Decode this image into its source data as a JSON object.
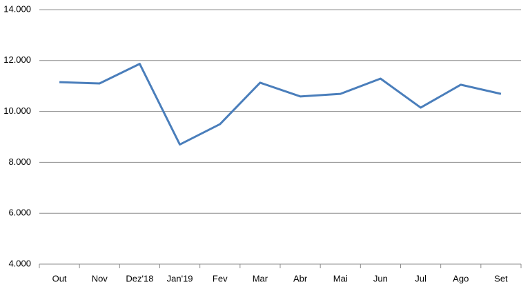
{
  "chart_data": {
    "type": "line",
    "categories": [
      "Out",
      "Nov",
      "Dez'18",
      "Jan'19",
      "Fev",
      "Mar",
      "Abr",
      "Mai",
      "Jun",
      "Jul",
      "Ago",
      "Set"
    ],
    "series": [
      {
        "color": "#4a7ebb",
        "values": [
          11150,
          11100,
          11870,
          8700,
          9500,
          11130,
          10590,
          10690,
          11290,
          10150,
          11050,
          10690
        ]
      }
    ],
    "ylim": [
      4000,
      14000
    ],
    "yticks": [
      {
        "value": 4000,
        "label": "4.000"
      },
      {
        "value": 6000,
        "label": "6.000"
      },
      {
        "value": 8000,
        "label": "8.000"
      },
      {
        "value": 10000,
        "label": "10.000"
      },
      {
        "value": 12000,
        "label": "12.000"
      },
      {
        "value": 14000,
        "label": "14.000"
      }
    ],
    "grid": true
  }
}
